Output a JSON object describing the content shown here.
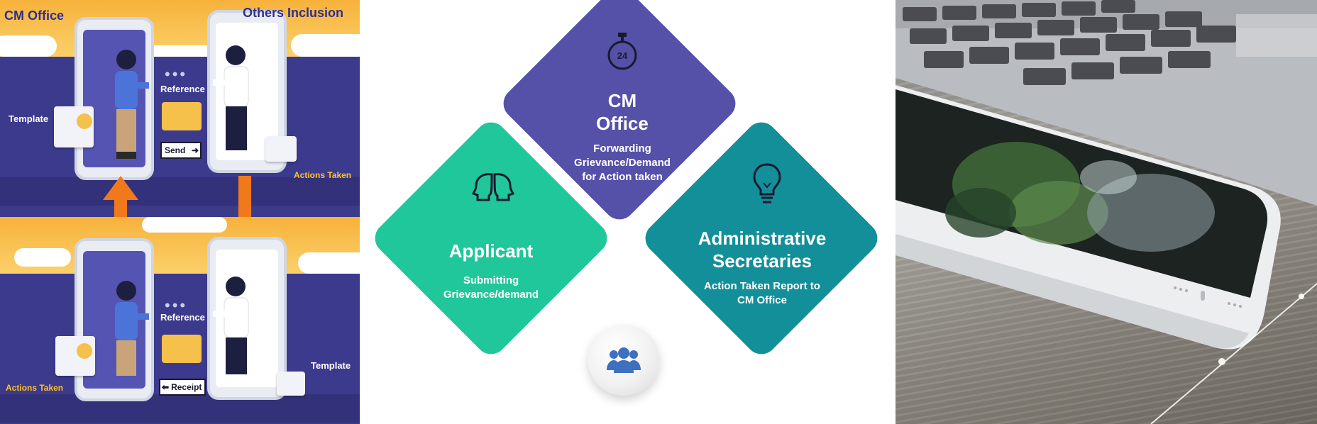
{
  "left_panel": {
    "top": {
      "cm_office_label": "CM Office",
      "others_inclusion_label": "Others Inclusion",
      "reference_label": "Reference",
      "template_label": "Template",
      "send_label": "Send",
      "actions_taken_label": "Actions Taken"
    },
    "bottom": {
      "reference_label": "Reference",
      "template_label": "Template",
      "receipt_label": "Receipt",
      "actions_taken_label": "Actions Taken"
    }
  },
  "diagram": {
    "cm_office": {
      "title_line1": "CM",
      "title_line2": "Office",
      "desc_line1": "Forwarding",
      "desc_line2": "Grievance/Demand",
      "desc_line3": "for Action taken",
      "icon": "stopwatch-24-icon"
    },
    "applicant": {
      "title": "Applicant",
      "desc_line1": "Submitting",
      "desc_line2": "Grievance/demand",
      "icon": "two-heads-icon"
    },
    "administrative": {
      "title_line1": "Administrative",
      "title_line2": "Secretaries",
      "desc_line1": "Action Taken Report to",
      "desc_line2": "CM Office",
      "icon": "lightbulb-icon"
    },
    "center_badge_icon": "people-group-icon",
    "stopwatch_number": "24"
  },
  "colors": {
    "cm_office": "#5551a8",
    "applicant": "#20c79a",
    "administrative": "#128f99",
    "label_yellow": "#ffc21f",
    "title_blue": "#2f2f8f"
  }
}
